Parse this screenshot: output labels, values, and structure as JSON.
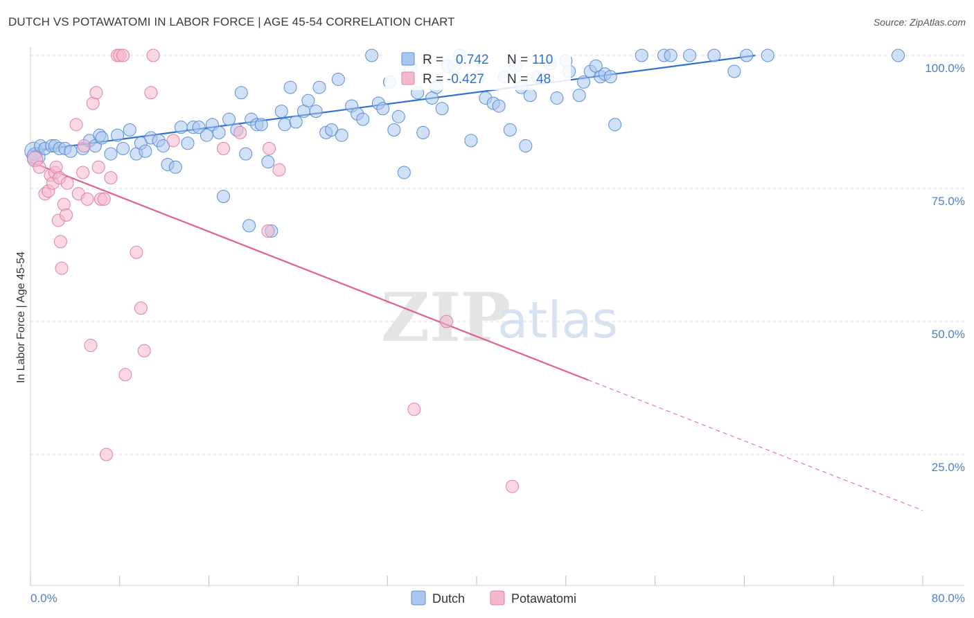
{
  "title": "DUTCH VS POTAWATOMI IN LABOR FORCE | AGE 45-54 CORRELATION CHART",
  "source": "Source: ZipAtlas.com",
  "watermark": {
    "zip": "ZIP",
    "atlas": "atlas"
  },
  "legend": {
    "r_label": "R =",
    "n_label": "N =",
    "dutch": {
      "r": "0.742",
      "n": "110"
    },
    "potawatomi": {
      "r": "-0.427",
      "n": "48"
    }
  },
  "colors": {
    "dutch_fill": "#a9c6ef",
    "dutch_stroke": "#5a8fd8",
    "dutch_line": "#2f6fd0",
    "pot_fill": "#f6b8cc",
    "pot_stroke": "#e07fa0",
    "pot_line": "#e0608a",
    "tick_text": "#4a7fd0",
    "grid": "#dddddd"
  },
  "chart_data": {
    "type": "scatter",
    "title": "DUTCH VS POTAWATOMI IN LABOR FORCE | AGE 45-54 CORRELATION CHART",
    "xlabel": "",
    "ylabel": "In Labor Force | Age 45-54",
    "xlim": [
      0,
      80
    ],
    "ylim": [
      0,
      102
    ],
    "x_tick_labels": [
      "0.0%",
      "80.0%"
    ],
    "y_ticks": [
      25,
      50,
      75,
      100
    ],
    "y_tick_labels": [
      "25.0%",
      "50.0%",
      "75.0%",
      "100.0%"
    ],
    "grid": true,
    "legend_position": "bottom-center",
    "series": [
      {
        "name": "Dutch",
        "trend": {
          "x": [
            0,
            65
          ],
          "y": [
            82,
            100
          ]
        },
        "points": [
          [
            0.3,
            82
          ],
          [
            0.5,
            81
          ],
          [
            0.9,
            83
          ],
          [
            1.3,
            82.5
          ],
          [
            1.9,
            83
          ],
          [
            2.2,
            83
          ],
          [
            2.6,
            82.5
          ],
          [
            3.1,
            82.5
          ],
          [
            3.6,
            82
          ],
          [
            4.7,
            82.5
          ],
          [
            5.3,
            84
          ],
          [
            5.8,
            83
          ],
          [
            6.2,
            85
          ],
          [
            6.4,
            84.5
          ],
          [
            7.2,
            81.5
          ],
          [
            7.8,
            85
          ],
          [
            8.3,
            82.5
          ],
          [
            8.9,
            86
          ],
          [
            9.5,
            81.5
          ],
          [
            9.9,
            83.5
          ],
          [
            10.3,
            82
          ],
          [
            10.8,
            84.5
          ],
          [
            11.5,
            84
          ],
          [
            11.9,
            83
          ],
          [
            12.3,
            79.5
          ],
          [
            13.0,
            79
          ],
          [
            13.5,
            86.5
          ],
          [
            14.1,
            83.5
          ],
          [
            14.6,
            86.5
          ],
          [
            15.1,
            86.5
          ],
          [
            15.8,
            85
          ],
          [
            16.3,
            87
          ],
          [
            16.9,
            85.5
          ],
          [
            17.3,
            73.5
          ],
          [
            17.8,
            88
          ],
          [
            18.5,
            86
          ],
          [
            18.9,
            93
          ],
          [
            19.3,
            81.5
          ],
          [
            19.6,
            68
          ],
          [
            19.8,
            88
          ],
          [
            20.3,
            87
          ],
          [
            20.7,
            87
          ],
          [
            21.3,
            80
          ],
          [
            21.6,
            67
          ],
          [
            22.5,
            89.5
          ],
          [
            22.8,
            87
          ],
          [
            23.3,
            94
          ],
          [
            23.8,
            87.5
          ],
          [
            24.5,
            89.5
          ],
          [
            24.9,
            91.5
          ],
          [
            25.6,
            89.5
          ],
          [
            25.9,
            94
          ],
          [
            26.5,
            85.5
          ],
          [
            27.0,
            86
          ],
          [
            27.6,
            95.5
          ],
          [
            27.9,
            85
          ],
          [
            28.8,
            90.5
          ],
          [
            29.3,
            89
          ],
          [
            29.8,
            88
          ],
          [
            30.6,
            100
          ],
          [
            31.2,
            91
          ],
          [
            31.6,
            90
          ],
          [
            32.2,
            95
          ],
          [
            32.6,
            86
          ],
          [
            33.0,
            88.5
          ],
          [
            33.5,
            78
          ],
          [
            34.1,
            97.5
          ],
          [
            34.7,
            93
          ],
          [
            35.2,
            85.5
          ],
          [
            36.0,
            92
          ],
          [
            36.4,
            94
          ],
          [
            36.9,
            90
          ],
          [
            37.4,
            98
          ],
          [
            38.0,
            98
          ],
          [
            38.5,
            100
          ],
          [
            39.5,
            84
          ],
          [
            40.2,
            96
          ],
          [
            40.8,
            92
          ],
          [
            41.5,
            91
          ],
          [
            42.0,
            90.5
          ],
          [
            42.5,
            96
          ],
          [
            43.0,
            86
          ],
          [
            43.5,
            98
          ],
          [
            44.0,
            94
          ],
          [
            44.4,
            83
          ],
          [
            44.8,
            92.5
          ],
          [
            45.5,
            96
          ],
          [
            46.6,
            98.5
          ],
          [
            47.2,
            92
          ],
          [
            48.0,
            99
          ],
          [
            48.3,
            97
          ],
          [
            49.2,
            92.5
          ],
          [
            49.6,
            95
          ],
          [
            50.2,
            97
          ],
          [
            50.7,
            98
          ],
          [
            51.1,
            96
          ],
          [
            51.5,
            96.5
          ],
          [
            52.0,
            96
          ],
          [
            52.4,
            87
          ],
          [
            54.8,
            100
          ],
          [
            56.8,
            100
          ],
          [
            57.4,
            100
          ],
          [
            59.1,
            100
          ],
          [
            61.3,
            100
          ],
          [
            63.1,
            97
          ],
          [
            64.2,
            100
          ],
          [
            66.1,
            100
          ],
          [
            77.8,
            100
          ]
        ]
      },
      {
        "name": "Potawatomi",
        "trend": {
          "x": [
            0,
            50
          ],
          "y": [
            80,
            39
          ]
        },
        "trend_dashed": {
          "x": [
            50,
            80
          ],
          "y": [
            39,
            14.5
          ]
        },
        "points": [
          [
            0.4,
            80.5
          ],
          [
            0.8,
            79
          ],
          [
            1.3,
            74
          ],
          [
            1.6,
            74.5
          ],
          [
            1.8,
            77.5
          ],
          [
            2.0,
            76
          ],
          [
            2.2,
            78
          ],
          [
            2.3,
            79
          ],
          [
            2.5,
            69
          ],
          [
            2.6,
            77
          ],
          [
            2.7,
            65
          ],
          [
            2.8,
            60
          ],
          [
            3.0,
            72
          ],
          [
            3.2,
            70
          ],
          [
            3.3,
            76
          ],
          [
            4.1,
            87
          ],
          [
            4.3,
            74
          ],
          [
            4.7,
            78
          ],
          [
            4.8,
            83
          ],
          [
            5.1,
            73
          ],
          [
            5.4,
            45.5
          ],
          [
            5.6,
            91
          ],
          [
            5.9,
            93
          ],
          [
            6.1,
            79
          ],
          [
            6.3,
            73
          ],
          [
            6.6,
            73
          ],
          [
            6.8,
            25
          ],
          [
            7.2,
            77
          ],
          [
            7.8,
            100
          ],
          [
            8.0,
            100
          ],
          [
            8.3,
            100
          ],
          [
            8.5,
            40
          ],
          [
            9.5,
            63
          ],
          [
            9.9,
            52.5
          ],
          [
            10.2,
            44.5
          ],
          [
            10.8,
            93
          ],
          [
            11.0,
            100
          ],
          [
            12.8,
            84
          ],
          [
            17.3,
            82.5
          ],
          [
            18.8,
            85.5
          ],
          [
            21.3,
            67
          ],
          [
            21.4,
            82.5
          ],
          [
            22.3,
            78.5
          ],
          [
            34.4,
            33.5
          ],
          [
            37.3,
            50
          ],
          [
            43.2,
            19
          ]
        ]
      }
    ]
  }
}
